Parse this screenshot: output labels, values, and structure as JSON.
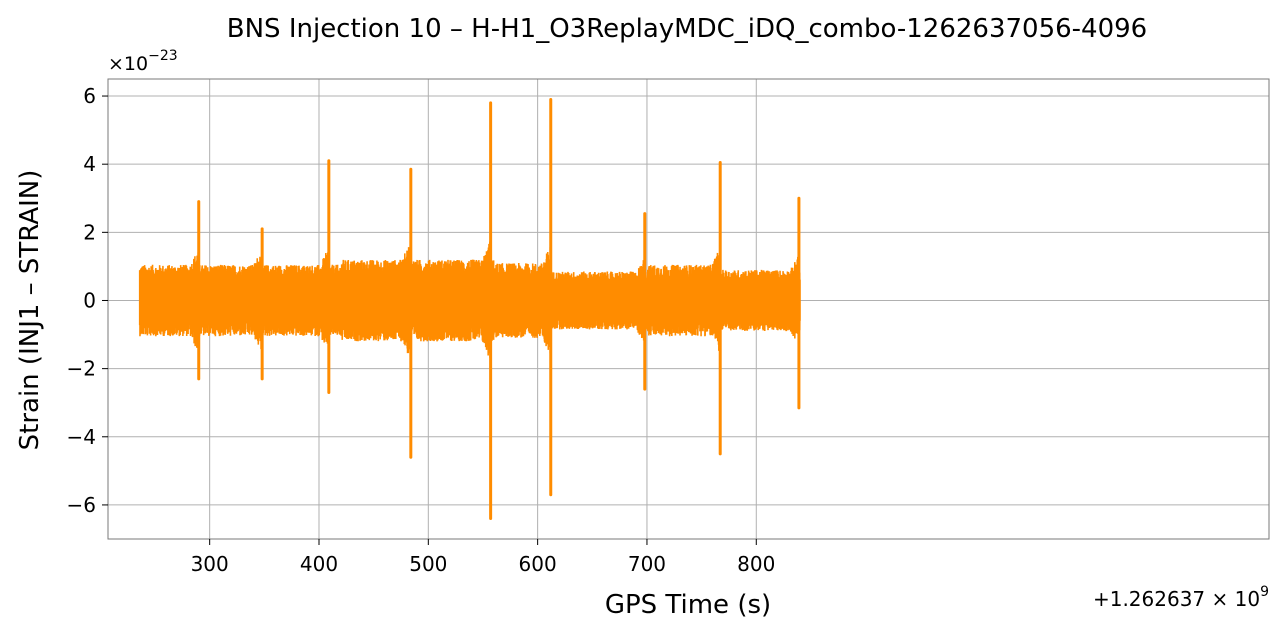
{
  "chart_data": {
    "type": "line",
    "title": "BNS Injection 10 – H-H1_O3ReplayMDC_iDQ_combo-1262637056-4096",
    "xlabel": "GPS Time (s)",
    "ylabel": "Strain (INJ1 – STRAIN)",
    "x_offset_label": "+1.262637 × 10",
    "x_offset_exponent": "9",
    "y_scale_label": "×10",
    "y_scale_exponent": "−23",
    "xlim": [
      207,
      1269
    ],
    "ylim": [
      -7.0,
      6.5
    ],
    "x_ticks": [
      300,
      400,
      500,
      600,
      700,
      800
    ],
    "x_tick_labels": [
      "300",
      "400",
      "500",
      "600",
      "700",
      "800"
    ],
    "y_ticks": [
      -6,
      -4,
      -2,
      0,
      2,
      4,
      6
    ],
    "y_tick_labels": [
      "−6",
      "−4",
      "−2",
      "0",
      "2",
      "4",
      "6"
    ],
    "grid": true,
    "series": [
      {
        "color": "#ff8c00",
        "x_start": 236,
        "x_end": 840,
        "noise_segments": [
          {
            "x": [
              236,
              420
            ],
            "amp": 1.05
          },
          {
            "x": [
              420,
              560
            ],
            "amp": 1.2
          },
          {
            "x": [
              560,
              612
            ],
            "amp": 1.1
          },
          {
            "x": [
              612,
              700
            ],
            "amp": 0.85
          },
          {
            "x": [
              700,
              767
            ],
            "amp": 1.05
          },
          {
            "x": [
              767,
              840
            ],
            "amp": 0.9
          }
        ],
        "spikes": [
          {
            "x": 290,
            "max": 2.9,
            "min": -2.3
          },
          {
            "x": 348,
            "max": 2.1,
            "min": -2.3
          },
          {
            "x": 409,
            "max": 4.1,
            "min": -2.7
          },
          {
            "x": 484,
            "max": 3.85,
            "min": -4.6
          },
          {
            "x": 557,
            "max": 5.8,
            "min": -6.4
          },
          {
            "x": 612,
            "max": 5.9,
            "min": -5.7
          },
          {
            "x": 698,
            "max": 2.55,
            "min": -2.6
          },
          {
            "x": 767,
            "max": 4.05,
            "min": -4.5
          },
          {
            "x": 839,
            "max": 3.0,
            "min": -3.15
          }
        ]
      }
    ]
  }
}
